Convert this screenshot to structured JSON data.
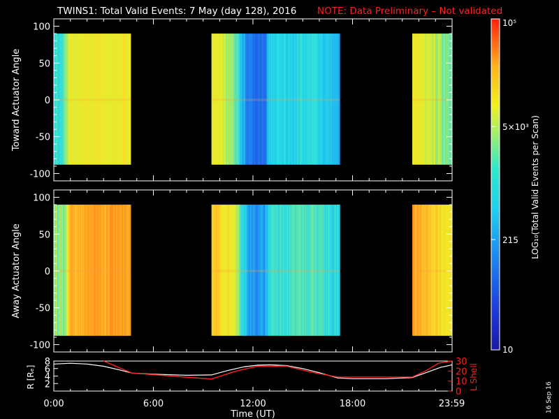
{
  "header": {
    "title": "TWINS1: Total Valid Events:  7 May (day 128), 2016",
    "note": "NOTE: Data Preliminary – Not validated"
  },
  "footer": {
    "stamp": "16 Sep 16"
  },
  "colors": {
    "background": "#000000",
    "axes": "#ffffff",
    "note": "#ff2020",
    "lshell": "#ff2020",
    "radius": "#ffffff"
  },
  "chart_data": [
    {
      "type": "heatmap",
      "panel": "toward",
      "ylabel": "Toward Actuator Angle",
      "ylim": [
        -110,
        110
      ],
      "yticks": [
        100,
        50,
        0,
        -50,
        -100
      ],
      "xlim": [
        0,
        24
      ],
      "angle_range": [
        -88,
        90
      ],
      "data_intervals_hours": [
        [
          0,
          4.65
        ],
        [
          9.5,
          17.25
        ],
        [
          21.6,
          24
        ]
      ],
      "log10_level_profile": [
        {
          "t": 0.0,
          "v": 2.75
        },
        {
          "t": 0.5,
          "v": 2.75
        },
        {
          "t": 0.9,
          "v": 3.55
        },
        {
          "t": 4.65,
          "v": 3.65
        },
        {
          "t": 9.5,
          "v": 3.55
        },
        {
          "t": 10.8,
          "v": 3.2
        },
        {
          "t": 11.7,
          "v": 2.0
        },
        {
          "t": 12.6,
          "v": 1.85
        },
        {
          "t": 13.0,
          "v": 2.6
        },
        {
          "t": 15.5,
          "v": 2.75
        },
        {
          "t": 17.25,
          "v": 2.3
        },
        {
          "t": 21.6,
          "v": 3.7
        },
        {
          "t": 24.0,
          "v": 3.0
        }
      ]
    },
    {
      "type": "heatmap",
      "panel": "away",
      "ylabel": "Away Actuator Angle",
      "ylim": [
        -110,
        110
      ],
      "yticks": [
        100,
        50,
        0,
        -50,
        -100
      ],
      "xlim": [
        0,
        24
      ],
      "angle_range": [
        -88,
        90
      ],
      "data_intervals_hours": [
        [
          0,
          4.65
        ],
        [
          9.5,
          17.25
        ],
        [
          21.6,
          24
        ]
      ],
      "log10_level_profile": [
        {
          "t": 0.0,
          "v": 3.2
        },
        {
          "t": 0.6,
          "v": 3.1
        },
        {
          "t": 1.0,
          "v": 4.1
        },
        {
          "t": 4.65,
          "v": 4.25
        },
        {
          "t": 9.5,
          "v": 3.95
        },
        {
          "t": 10.8,
          "v": 3.55
        },
        {
          "t": 11.7,
          "v": 2.3
        },
        {
          "t": 12.6,
          "v": 2.15
        },
        {
          "t": 13.0,
          "v": 2.75
        },
        {
          "t": 15.5,
          "v": 3.0
        },
        {
          "t": 17.25,
          "v": 2.65
        },
        {
          "t": 21.6,
          "v": 4.2
        },
        {
          "t": 24.0,
          "v": 3.6
        }
      ]
    },
    {
      "type": "line",
      "panel": "orbit",
      "xlabel": "Time (UT)",
      "ylabel": "R [Rₑ]",
      "ylabel_right": "L Shell",
      "xlim": [
        0,
        24
      ],
      "ylim": [
        0,
        8
      ],
      "yticks": [
        2,
        4,
        6,
        8
      ],
      "ylim_right": [
        0,
        30
      ],
      "yticks_right": [
        0,
        10,
        20,
        30
      ],
      "xtick_labels": [
        {
          "t": 0,
          "label": "0:00"
        },
        {
          "t": 6,
          "label": "6:00"
        },
        {
          "t": 12,
          "label": "12:00"
        },
        {
          "t": 18,
          "label": "18:00"
        },
        {
          "t": 23.98,
          "label": "23:59"
        }
      ],
      "series": [
        {
          "name": "R",
          "axis": "left",
          "x": [
            0,
            1,
            2,
            3,
            4,
            4.7,
            6,
            8,
            9.5,
            10.5,
            11.5,
            12.3,
            13,
            14,
            15,
            16,
            17.1,
            18,
            20,
            21.6,
            22.5,
            23.3,
            24
          ],
          "y": [
            7.2,
            7.4,
            7.2,
            6.6,
            5.6,
            4.8,
            4.5,
            4.2,
            4.3,
            5.5,
            6.5,
            6.9,
            7.0,
            6.8,
            6.0,
            4.9,
            3.5,
            3.3,
            3.3,
            3.6,
            5.0,
            6.3,
            7.0
          ]
        },
        {
          "name": "L Shell",
          "axis": "right",
          "x": [
            3,
            4.7,
            9.5,
            11,
            12.3,
            14,
            15.5,
            17.1,
            21.6,
            22.4,
            23.2,
            24
          ],
          "y": [
            30,
            18,
            12,
            20,
            25,
            25,
            19,
            14,
            14,
            20,
            28,
            30
          ]
        }
      ]
    },
    {
      "type": "heatmap",
      "panel": "colorbar",
      "label": "LOG₁₀(Total Valid Events per Scan)",
      "range": [
        10,
        100000
      ],
      "ticks": [
        {
          "value": 100000,
          "label": "10⁵"
        },
        {
          "value": 5000,
          "label": "5×10³"
        },
        {
          "value": 215,
          "label": "215"
        },
        {
          "value": 10,
          "label": "10"
        }
      ]
    }
  ]
}
